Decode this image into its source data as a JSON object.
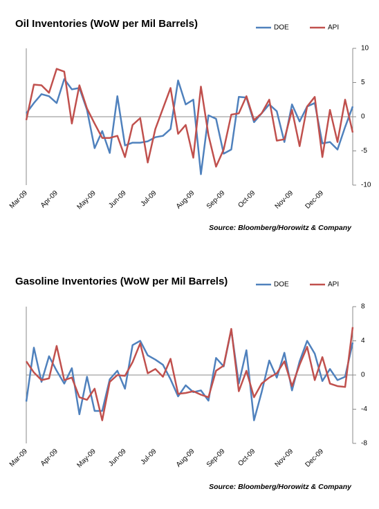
{
  "chart_data": [
    {
      "type": "line",
      "title": "Oil Inventories (WoW per Mil Barrels)",
      "source": "Source: Bloomberg/Horowitz & Company",
      "categories": [
        "Mar-09",
        null,
        null,
        null,
        "Apr-09",
        null,
        null,
        null,
        null,
        "May-09",
        null,
        null,
        null,
        "Jun-09",
        null,
        null,
        null,
        "Jul-09",
        null,
        null,
        null,
        null,
        "Aug-09",
        null,
        null,
        null,
        "Sep-09",
        null,
        null,
        null,
        "Oct-09",
        null,
        null,
        null,
        null,
        "Nov-09",
        null,
        null,
        null,
        "Dec-09",
        null,
        null,
        null,
        null
      ],
      "series": [
        {
          "name": "DOE",
          "color": "#4f81bd",
          "values": [
            0.5,
            2,
            3.3,
            3,
            2,
            5.5,
            4,
            4.2,
            1,
            -4.6,
            -2.1,
            -5.3,
            3,
            -4.2,
            -3.8,
            -3.8,
            -3.6,
            -3,
            -2.8,
            -1.8,
            5.3,
            1.8,
            2.5,
            -8.4,
            0.2,
            -0.3,
            -5.4,
            -4.8,
            2.9,
            2.8,
            -0.8,
            0.5,
            1.8,
            0.8,
            -3.7,
            1.8,
            -0.7,
            1.5,
            2,
            -3.9,
            -3.7,
            -4.8,
            -1.5,
            1.5
          ]
        },
        {
          "name": "API",
          "color": "#c0504d",
          "values": [
            -0.5,
            4.7,
            4.6,
            3.5,
            7,
            6.6,
            -1,
            4.6,
            1.2,
            -1,
            -3.1,
            -3.1,
            -2.8,
            -5.9,
            -1.2,
            -0.2,
            -6.7,
            -1.8,
            1.2,
            4.2,
            -2.5,
            -1.2,
            -6,
            4.4,
            -2.7,
            -7.3,
            -4.8,
            0.3,
            0.5,
            3,
            -0.5,
            0.5,
            2.5,
            -3.5,
            -3.3,
            1,
            -4.3,
            1.5,
            2.9,
            -5.9,
            1,
            -3.7,
            2.5,
            -2.3
          ]
        }
      ],
      "ylim": [
        -10,
        10
      ],
      "yticks": [
        -10,
        -5,
        0,
        5,
        10
      ],
      "y_axis_side": "right",
      "legend": "top-right"
    },
    {
      "type": "line",
      "title": "Gasoline Inventories (WoW per Mil Barrels)",
      "source": "Source: Bloomberg/Horowitz & Company",
      "categories": [
        "Mar-09",
        null,
        null,
        null,
        "Apr-09",
        null,
        null,
        null,
        null,
        "May-09",
        null,
        null,
        null,
        "Jun-09",
        null,
        null,
        null,
        "Jul-09",
        null,
        null,
        null,
        null,
        "Aug-09",
        null,
        null,
        null,
        "Sep-09",
        null,
        null,
        null,
        "Oct-09",
        null,
        null,
        null,
        null,
        "Nov-09",
        null,
        null,
        null,
        "Dec-09",
        null,
        null,
        null,
        null
      ],
      "series": [
        {
          "name": "DOE",
          "color": "#4f81bd",
          "values": [
            -3.1,
            3.2,
            -0.8,
            2.2,
            0.5,
            -1,
            0.8,
            -4.6,
            -0.2,
            -4.2,
            -4.2,
            -0.5,
            0.5,
            -1.6,
            3.5,
            4,
            2.3,
            1.8,
            1.2,
            -0.5,
            -2.5,
            -1.2,
            -2,
            -1.8,
            -3,
            2,
            1,
            5.3,
            -1,
            2.9,
            -5.3,
            -2,
            1.7,
            -0.3,
            2.6,
            -1.8,
            1.6,
            4,
            2.5,
            -0.7,
            0.7,
            -0.6,
            -0.2,
            3.8
          ]
        },
        {
          "name": "API",
          "color": "#c0504d",
          "values": [
            1.6,
            0.3,
            -0.6,
            -0.4,
            3.4,
            -0.6,
            -0.3,
            -2.6,
            -2.9,
            -1.6,
            -5.3,
            -0.8,
            0,
            -0.1,
            1.5,
            3.7,
            0.2,
            0.7,
            -0.2,
            1.9,
            -2.2,
            -2.1,
            -1.9,
            -2.3,
            -2.6,
            0.5,
            1.1,
            5.4,
            -1.9,
            0.5,
            -2.6,
            -1,
            -0.3,
            0.2,
            1.6,
            -1.3,
            1.2,
            3.3,
            -0.6,
            2.1,
            -1,
            -1.3,
            -1.4,
            5.6
          ]
        }
      ],
      "ylim": [
        -8,
        8
      ],
      "yticks": [
        -8,
        -4,
        0,
        4,
        8
      ],
      "y_axis_side": "right",
      "legend": "top-right"
    }
  ]
}
